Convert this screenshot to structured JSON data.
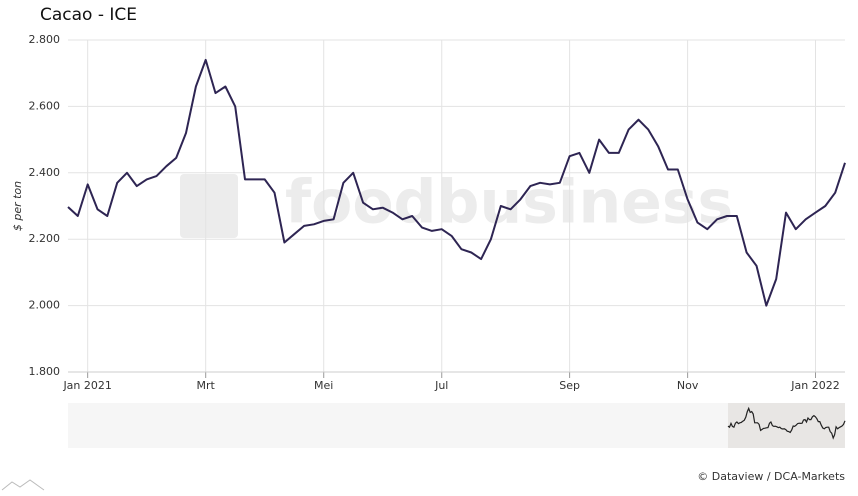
{
  "chart_data": {
    "type": "line",
    "title": "Cacao - ICE",
    "y_label": "$ per ton",
    "watermark": "foodbusiness",
    "credits": "© Dataview / DCA-Markets",
    "categories": [
      null,
      null,
      "Jan 2021",
      null,
      null,
      null,
      null,
      null,
      null,
      null,
      null,
      null,
      null,
      null,
      "Mrt",
      null,
      null,
      null,
      null,
      null,
      null,
      null,
      null,
      null,
      null,
      null,
      "Mei",
      null,
      null,
      null,
      null,
      null,
      null,
      null,
      null,
      null,
      null,
      null,
      "Jul",
      null,
      null,
      null,
      null,
      null,
      null,
      null,
      null,
      null,
      null,
      null,
      null,
      "Sep",
      null,
      null,
      null,
      null,
      null,
      null,
      null,
      null,
      null,
      null,
      null,
      "Nov",
      null,
      null,
      null,
      null,
      null,
      null,
      null,
      null,
      null,
      null,
      null,
      null,
      "Jan 2022",
      null,
      null,
      null
    ],
    "series": [
      {
        "name": "Cacao",
        "color": "#2e2553",
        "values": [
          2297,
          2270,
          2365,
          2290,
          2270,
          2370,
          2400,
          2360,
          2380,
          2390,
          2420,
          2445,
          2520,
          2660,
          2740,
          2640,
          2660,
          2600,
          2380,
          2380,
          2380,
          2340,
          2190,
          2215,
          2240,
          2245,
          2255,
          2260,
          2370,
          2400,
          2310,
          2290,
          2295,
          2280,
          2260,
          2270,
          2235,
          2225,
          2230,
          2210,
          2170,
          2160,
          2140,
          2200,
          2300,
          2290,
          2320,
          2360,
          2370,
          2365,
          2370,
          2450,
          2460,
          2400,
          2500,
          2460,
          2460,
          2530,
          2560,
          2530,
          2480,
          2410,
          2410,
          2320,
          2250,
          2230,
          2260,
          2270,
          2270,
          2160,
          2120,
          2000,
          2080,
          2280,
          2230,
          2260,
          2280,
          2300,
          2340,
          2430
        ]
      }
    ],
    "ylim": [
      1800,
      2800
    ],
    "yticks": [
      {
        "value": 1800,
        "label": "1.800"
      },
      {
        "value": 2000,
        "label": "2.000"
      },
      {
        "value": 2200,
        "label": "2.200"
      },
      {
        "value": 2400,
        "label": "2.400"
      },
      {
        "value": 2600,
        "label": "2.600"
      },
      {
        "value": 2800,
        "label": "2.800"
      }
    ],
    "grid": true
  }
}
